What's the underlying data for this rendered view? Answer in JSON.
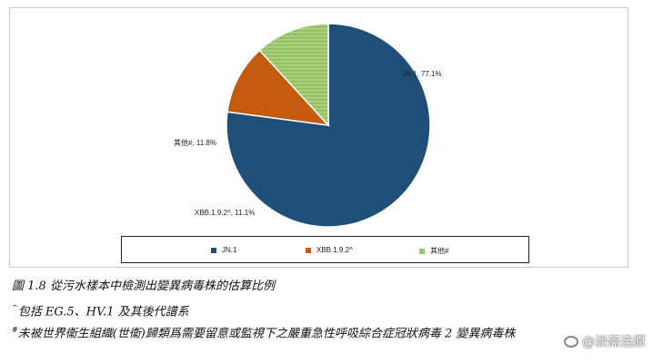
{
  "chart_data": {
    "type": "pie",
    "slices": [
      {
        "label": "JN.1",
        "value": 77.1,
        "data_label": "JN.1, 77.1%",
        "color": "#1f4e79"
      },
      {
        "label": "XBB.1.9.2^",
        "value": 11.1,
        "data_label": "XBB.1.9.2^, 11.1%",
        "color": "#c55a11"
      },
      {
        "label": "其他#",
        "value": 11.8,
        "data_label": "其他#, 11.8%",
        "color": "#9bc46a"
      }
    ],
    "legend": {
      "placement": "bottom",
      "items": [
        {
          "label": "JN.1",
          "color": "#1f4e79"
        },
        {
          "label": "XBB.1.9.2^",
          "color": "#c55a11"
        },
        {
          "label": "其他#",
          "color": "#9bc46a"
        }
      ]
    }
  },
  "caption": {
    "title": "圖 1.8 從污水樣本中檢測出變異病毒株的估算比例",
    "note1_mark": "^",
    "note1": "包括 EG.5、HV.1 及其後代譜系",
    "note2_mark": "#",
    "note2": "未被世界衞生組織(世衞)歸類爲需要留意或監視下之嚴重急性呼吸綜合症冠狀病毒 2 變異病毒株"
  },
  "watermark": {
    "text": "@淡斋选原",
    "icon": "weibo-logo-icon"
  }
}
